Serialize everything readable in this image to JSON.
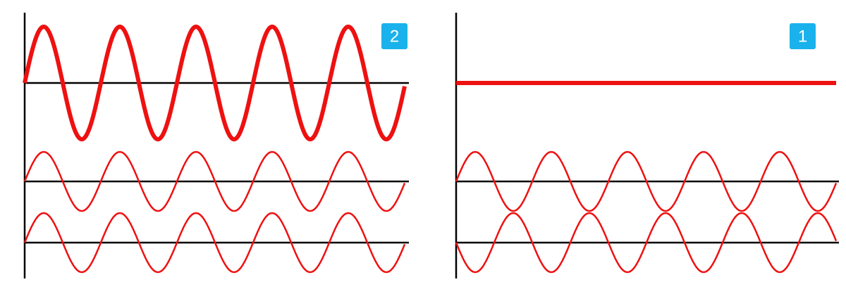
{
  "panels": [
    {
      "label": "2"
    },
    {
      "label": "1"
    }
  ]
}
